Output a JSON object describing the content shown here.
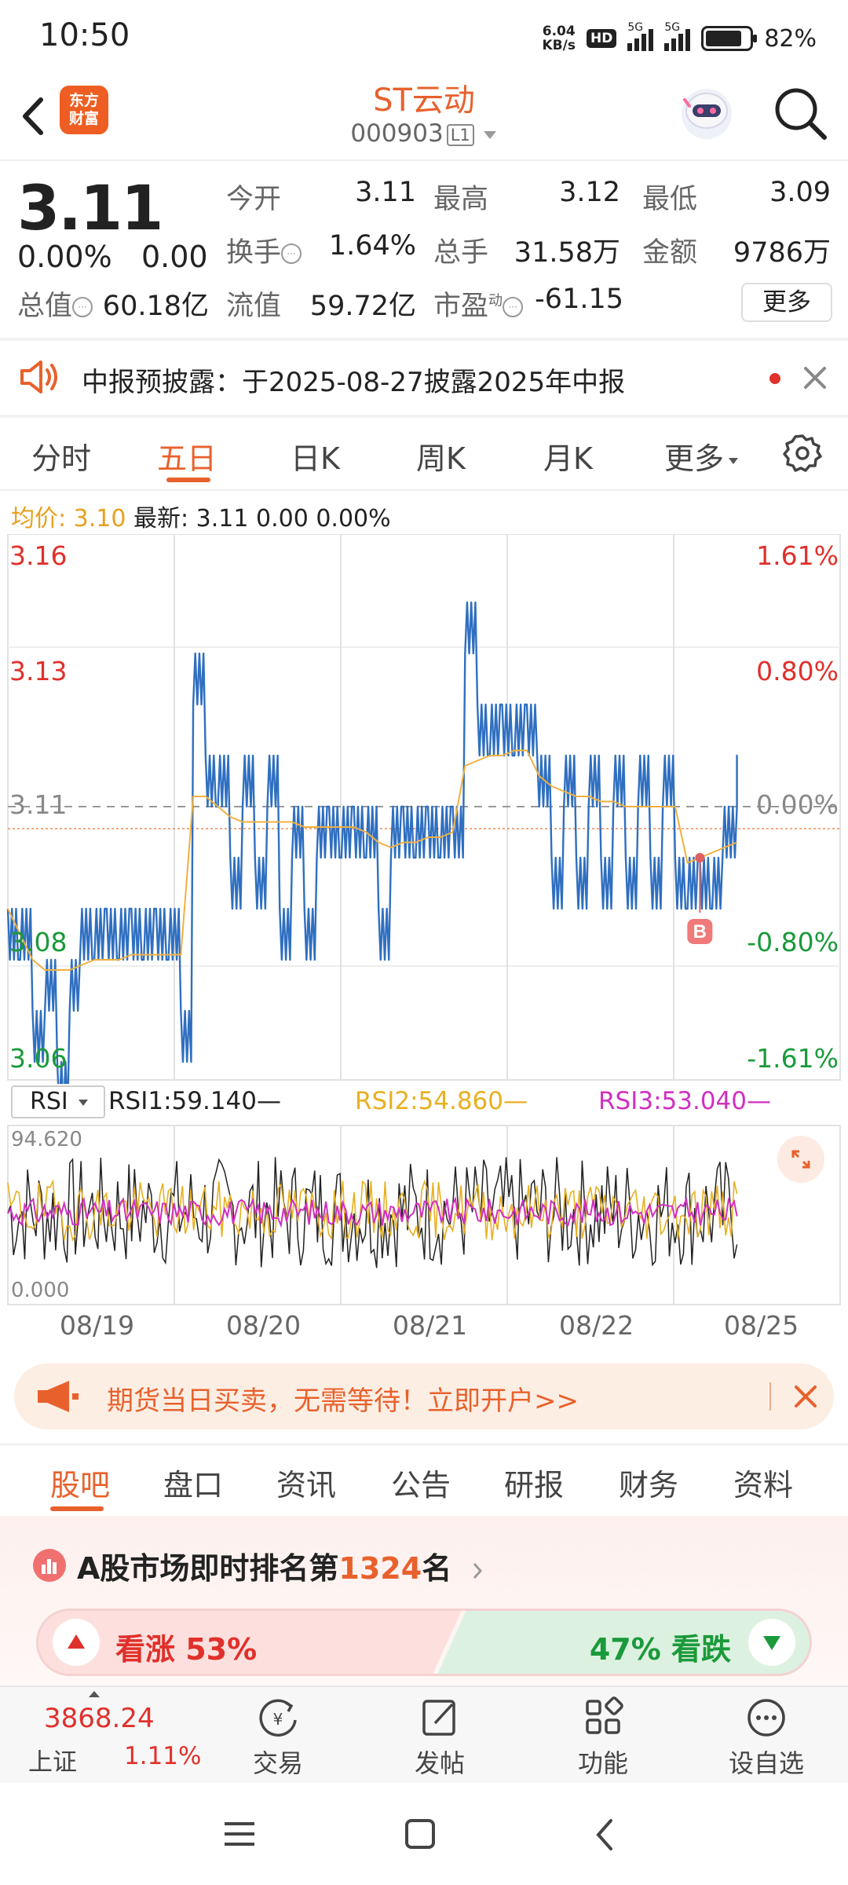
{
  "status_bar": {
    "time": "10:50",
    "net_speed_value": "6.04",
    "net_speed_unit": "KB/s",
    "hd_badge": "HD",
    "sim1_tag": "5G",
    "sim2_tag": "5G",
    "battery": "82%",
    "battery_level": 0.82
  },
  "header": {
    "logo_text_line1": "东方",
    "logo_text_line2": "财富",
    "stock_name": "ST云动",
    "stock_code": "000903",
    "level_badge": "L1"
  },
  "quote": {
    "price": "3.11",
    "change_pct": "0.00%",
    "change": "0.00",
    "open_label": "今开",
    "open": "3.11",
    "high_label": "最高",
    "high": "3.12",
    "low_label": "最低",
    "low": "3.09",
    "turnover_label": "换手",
    "turnover": "1.64%",
    "volume_label": "总手",
    "volume": "31.58万",
    "amount_label": "金额",
    "amount": "9786万",
    "mktcap_label": "总值",
    "mktcap": "60.18亿",
    "float_label": "流值",
    "float": "59.72亿",
    "pe_label": "市盈",
    "pe_sup": "动",
    "pe": "-61.15",
    "more_label": "更多"
  },
  "notice": {
    "text": "中报预披露：于2025-08-27披露2025年中报"
  },
  "period_tabs": [
    {
      "label": "分时"
    },
    {
      "label": "五日"
    },
    {
      "label": "日K"
    },
    {
      "label": "周K"
    },
    {
      "label": "月K"
    },
    {
      "label": "更多"
    }
  ],
  "info_line": {
    "avg_label": "均价:",
    "avg_value": "3.10",
    "latest_label": "最新:",
    "latest_value": "3.11",
    "change": "0.00",
    "change_pct": "0.00%"
  },
  "chart_data": {
    "type": "line",
    "y_left_labels": [
      "3.16",
      "3.13",
      "3.11",
      "3.08",
      "3.06"
    ],
    "y_right_labels": [
      "1.61%",
      "0.80%",
      "0.00%",
      "-0.80%",
      "-1.61%"
    ],
    "ylim": [
      3.06,
      3.16
    ],
    "x_labels": [
      "08/19",
      "08/20",
      "08/21",
      "08/22",
      "08/25"
    ],
    "reference_price": 3.11,
    "series": [
      {
        "name": "价格",
        "color": "#2f6fc0",
        "values": [
          3.09,
          3.08,
          3.07,
          3.07,
          3.06,
          3.07,
          3.09,
          3.08,
          3.09,
          3.08,
          3.09,
          3.08,
          3.09,
          3.08,
          3.07,
          3.13,
          3.12,
          3.11,
          3.1,
          3.11,
          3.1,
          3.11,
          3.09,
          3.1,
          3.09,
          3.1,
          3.11,
          3.1,
          3.11,
          3.1,
          3.09,
          3.1,
          3.11,
          3.1,
          3.11,
          3.1,
          3.11,
          3.14,
          3.13,
          3.12,
          3.13,
          3.12,
          3.13,
          3.11,
          3.1,
          3.11,
          3.1,
          3.11,
          3.1,
          3.11,
          3.1,
          3.11,
          3.1,
          3.11,
          3.1,
          3.09,
          3.1,
          3.09,
          3.11,
          3.11
        ]
      },
      {
        "name": "均价",
        "color": "#f0b040",
        "values": [
          3.09,
          3.085,
          3.08,
          3.078,
          3.078,
          3.078,
          3.079,
          3.08,
          3.08,
          3.08,
          3.081,
          3.081,
          3.081,
          3.081,
          3.081,
          3.112,
          3.112,
          3.11,
          3.108,
          3.107,
          3.107,
          3.107,
          3.107,
          3.107,
          3.106,
          3.106,
          3.106,
          3.106,
          3.106,
          3.105,
          3.103,
          3.102,
          3.103,
          3.103,
          3.104,
          3.104,
          3.105,
          3.118,
          3.119,
          3.12,
          3.12,
          3.121,
          3.121,
          3.116,
          3.114,
          3.113,
          3.112,
          3.112,
          3.111,
          3.111,
          3.11,
          3.11,
          3.11,
          3.11,
          3.11,
          3.099,
          3.1,
          3.101,
          3.102,
          3.103
        ]
      }
    ],
    "annotation": {
      "label": "B",
      "price": 3.1
    }
  },
  "rsi": {
    "selector_label": "RSI",
    "rsi1": "RSI1:59.140—",
    "rsi2": "RSI2:54.860—",
    "rsi3": "RSI3:53.040—",
    "max_label": "94.620",
    "min_label": "0.000",
    "colors": {
      "rsi1": "#222222",
      "rsi2": "#e8b020",
      "rsi3": "#d030c0"
    }
  },
  "ad_banner": {
    "text": "期货当日买卖，无需等待！立即开户>>"
  },
  "lower_tabs": [
    {
      "label": "股吧"
    },
    {
      "label": "盘口"
    },
    {
      "label": "资讯"
    },
    {
      "label": "公告"
    },
    {
      "label": "研报"
    },
    {
      "label": "财务"
    },
    {
      "label": "资料"
    }
  ],
  "ranking": {
    "prefix": "A股市场即时排名第",
    "rank": "1324",
    "suffix": "名",
    "up_label": "看涨 53%",
    "down_label": "47% 看跌",
    "up_share": 0.53
  },
  "bottom_nav": {
    "index_value": "3868.24",
    "index_name": "上证",
    "index_pct": "1.11%",
    "items": [
      {
        "label": "交易"
      },
      {
        "label": "发帖"
      },
      {
        "label": "功能"
      },
      {
        "label": "设自选"
      }
    ]
  },
  "colors": {
    "accent": "#e8612c",
    "up": "#e0302b",
    "down": "#1a9a3a",
    "price_line": "#2f6fc0",
    "avg_line": "#f0b040"
  }
}
